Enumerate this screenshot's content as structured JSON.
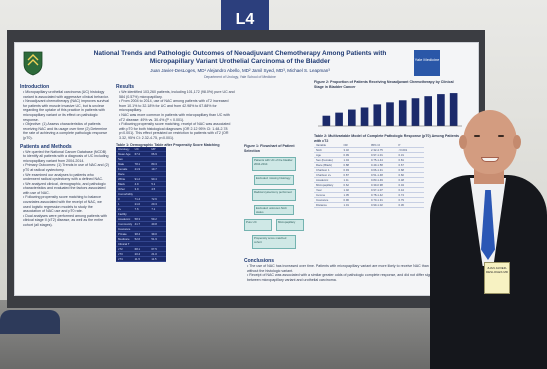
{
  "stand_label": "L4",
  "poster": {
    "title_line1": "National Trends and Pathologic Outcomes of Neoadjuvant Chemotherapy Among Patients with",
    "title_line2": "Micropapillary Variant Urothelial Carcinoma of the Bladder",
    "authors": "Juan Javier-DesLoges, MD¹ Alejandro Abello, MD² Jamil Syed, MD³, Michael S. Leapman³",
    "department": "Department of Urology, Yale School of Medicine",
    "logo_right_text": "Yale Medicine",
    "intro_head": "Introduction",
    "intro_bullets": [
      "Micropapillary urothelial carcinoma (UC) histology variant is associated with aggressive clinical behavior.",
      "Neoadjuvant chemotherapy (NAC) improves survival for patients with muscle invasive UC, but is unclear regarding the uptake of this practice in patients with micropapillary variant or its effect on pathologic response.",
      "Objective: (1) Assess characteristics of patients receiving NAC and its usage over time (2) Determine the rate of achieving a complete pathologic response (pT0)."
    ],
    "methods_head": "Patients and Methods",
    "methods_bullets": [
      "We queried the National Cancer Database (NCDB) to identify all patients with a diagnosis of UC including micropapillary variant from 2004-2014.",
      "Primary Outcomes: (1) Trends in use of NAC and (2) pT0 at radical cystectomy.",
      "We examined our analyses to patients who underwent radical cystectomy with a defined NAC.",
      "We analyzed clinical, demographic, and pathologic characteristics and evaluated the factors associated with use of NAC.",
      "Following propensity score matching to balance covariates associated with the receipt of NAC, we used logistic regression models to study the association of NAC use and pT0 rate.",
      "Dual analyses were performed among patients with clinical stage II (cT2) disease, as well as the entire cohort (all stages)."
    ],
    "results_head": "Results",
    "results_bullets": [
      "We identified 103,260 patients, including 101,172 (98.0%) pure UC and 584 (0.57%) micropapillary.",
      "From 2004 to 2014, use of NAC among patients with cT2 increased from 10.1% to 32.18% for UC and from 42.98% to 67.88% for micropapillary.",
      "NAC was more common in patients with micropapillary than UC with cT2 disease: 49% vs. 30.4% (P < 0.001).",
      "Following propensity score matching, receipt of NAC was associated with pT0 for both histological diagnoses (OR 2.12 95% CI: 1.48-2.78 p<0.001). This effect persisted on restriction to patients with cT2 (OR 3.32, 95% CI: 2.32-4.75, p<0.001)."
    ],
    "table1_caption": "Table 1: Demographic Table after Propensity Score Matching",
    "table1_rows": [
      [
        "Histology",
        "UC",
        "MP"
      ],
      [
        "Mean Age",
        "67.2",
        "66.9"
      ],
      [
        "Sex",
        "",
        ""
      ],
      [
        "Male",
        "78.1",
        "80.3"
      ],
      [
        "Female",
        "21.9",
        "19.7"
      ],
      [
        "Race",
        "",
        ""
      ],
      [
        "White",
        "91.2",
        "90.4"
      ],
      [
        "Black",
        "4.9",
        "5.1"
      ],
      [
        "Other",
        "3.9",
        "4.5"
      ],
      [
        "Comorbidity",
        "",
        ""
      ],
      [
        "0",
        "71.4",
        "72.6"
      ],
      [
        "1",
        "21.0",
        "20.3"
      ],
      [
        "2+",
        "7.6",
        "7.1"
      ],
      [
        "Facility",
        "",
        ""
      ],
      [
        "Academic",
        "58.3",
        "59.2"
      ],
      [
        "Community",
        "41.7",
        "40.8"
      ],
      [
        "Insurance",
        "",
        ""
      ],
      [
        "Private",
        "38.4",
        "39.0"
      ],
      [
        "Medicare",
        "52.6",
        "51.9"
      ],
      [
        "Clinical T",
        "",
        ""
      ],
      [
        "cT2",
        "68.1",
        "67.5"
      ],
      [
        "cT3",
        "20.4",
        "21.0"
      ],
      [
        "cT4",
        "11.5",
        "11.5"
      ]
    ],
    "figure1_caption": "Figure 1: Flowchart of Patient Selection",
    "flow_boxes": [
      "Patients with UC of the bladder 2004-2014",
      "Excluded: missing histology",
      "Radical cystectomy performed",
      "Excluded: unknown NAC status",
      "Pure UC",
      "Micropapillary",
      "Propensity score matched cohort"
    ],
    "figure2_caption": "Figure 2: Proportion of Patients Receiving Neoadjuvant Chemotherapy by Clinical Stage in Bladder Cancer",
    "figure2_values": [
      0.1,
      0.13,
      0.16,
      0.18,
      0.21,
      0.23,
      0.25,
      0.27,
      0.29,
      0.31,
      0.32
    ],
    "table2_caption": "Table 2: Multivariable Model of Complete Pathologic Response (pT0) Among Patients with cT2",
    "table2_rows": [
      [
        "Variable",
        "OR",
        "95% CI",
        "P"
      ],
      [
        "NAC",
        "3.32",
        "2.32-4.75",
        "<0.001"
      ],
      [
        "Age",
        "0.99",
        "0.97-1.01",
        "0.31"
      ],
      [
        "Sex (Female)",
        "1.04",
        "0.75-1.44",
        "0.81"
      ],
      [
        "Race (Black)",
        "0.88",
        "0.49-1.58",
        "0.67"
      ],
      [
        "Charlson 1",
        "0.93",
        "0.66-1.31",
        "0.68"
      ],
      [
        "Charlson 2+",
        "0.87",
        "0.51-1.48",
        "0.60"
      ],
      [
        "Academic",
        "1.11",
        "0.83-1.49",
        "0.48"
      ],
      [
        "Micropapillary",
        "0.62",
        "0.39-0.98",
        "0.04"
      ],
      [
        "Year",
        "1.02",
        "0.97-1.07",
        "0.44"
      ],
      [
        "Income",
        "1.05",
        "0.78-1.42",
        "0.74"
      ],
      [
        "Insurance",
        "0.96",
        "0.70-1.31",
        "0.79"
      ],
      [
        "Distance",
        "1.01",
        "0.99-1.02",
        "0.36"
      ]
    ],
    "conclusions_head": "Conclusions",
    "conclusions_bullets": [
      "The use of NAC has increased over time. Patients with micropapillary variant are more likely to receive NAC than patients without the histologic variant.",
      "Receipt of NAC was associated with a similar greater odds of pathologic complete response, and did not differ significantly between micropapillary variant and urothelial carcinoma."
    ]
  },
  "badge_text": "JUAN JAVIER-DESLOGES MD",
  "colors": {
    "title_blue": "#1f3a73",
    "table_navy": "#1b2a6b",
    "flow_teal": "#cfe8e6",
    "tie_blue": "#2b57b5"
  }
}
